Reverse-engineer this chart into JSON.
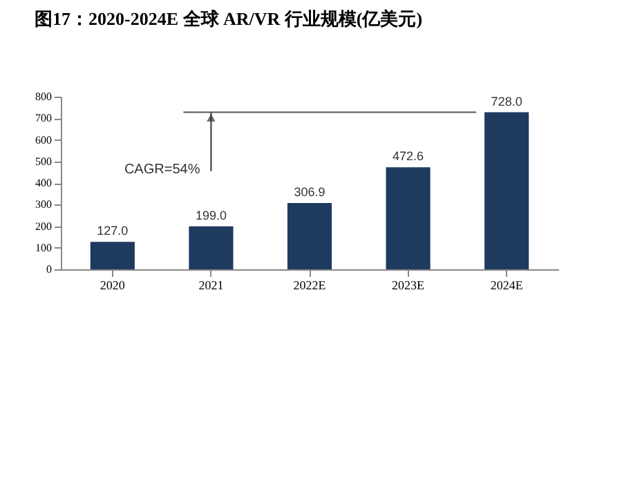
{
  "chart_data": {
    "type": "bar",
    "title": "图17：2020-2024E 全球 AR/VR 行业规模(亿美元)",
    "categories": [
      "2020",
      "2021",
      "2022E",
      "2023E",
      "2024E"
    ],
    "values": [
      127.0,
      199.0,
      306.9,
      472.6,
      728.0
    ],
    "value_labels": [
      "127.0",
      "199.0",
      "306.9",
      "472.6",
      "728.0"
    ],
    "color": "#1f3a5f",
    "ylim": [
      0,
      800
    ],
    "yticks": [
      0,
      100,
      200,
      300,
      400,
      500,
      600,
      700,
      800
    ],
    "grid": false,
    "annotations": [
      "CAGR=54%"
    ]
  }
}
